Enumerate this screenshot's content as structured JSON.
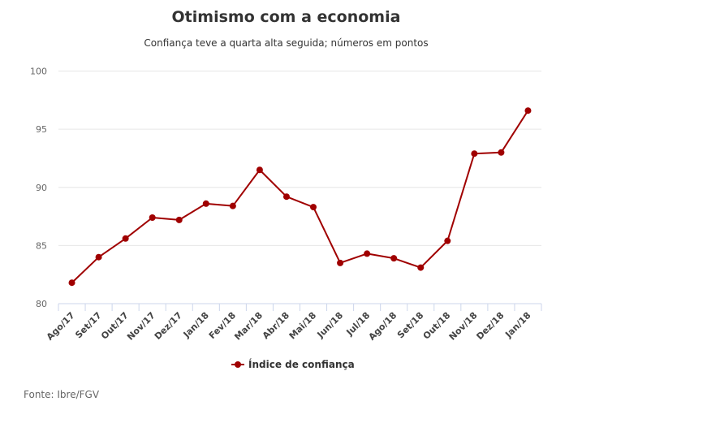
{
  "header": {
    "title": "Otimismo com a economia",
    "subtitle": "Confiança teve a quarta alta seguida; números em pontos"
  },
  "footer": {
    "source": "Fonte: Ibre/FGV"
  },
  "colors": {
    "series": "#a00000",
    "grid": "#e6e6e6",
    "axis": "#ccd6eb"
  },
  "chart_data": {
    "type": "line",
    "title": "Otimismo com a economia",
    "subtitle": "Confiança teve a quarta alta seguida; números em pontos",
    "xlabel": "",
    "ylabel": "",
    "ylim": [
      80,
      100
    ],
    "yticks": [
      80,
      85,
      90,
      95,
      100
    ],
    "grid": true,
    "legend_position": "bottom",
    "categories": [
      "Ago/17",
      "Set/17",
      "Out/17",
      "Nov/17",
      "Dez/17",
      "Jan/18",
      "Fev/18",
      "Mar/18",
      "Abr/18",
      "Mai/18",
      "Jun/18",
      "Jul/18",
      "Ago/18",
      "Set/18",
      "Out/18",
      "Nov/18",
      "Dez/18",
      "Jan/18"
    ],
    "series": [
      {
        "name": "Índice de confiança",
        "values": [
          81.8,
          84.0,
          85.6,
          87.4,
          87.2,
          88.6,
          88.4,
          91.5,
          89.2,
          88.3,
          83.5,
          84.3,
          83.9,
          83.1,
          85.4,
          92.9,
          93.0,
          96.6
        ]
      }
    ],
    "annotations": [
      "Fonte: Ibre/FGV"
    ]
  }
}
